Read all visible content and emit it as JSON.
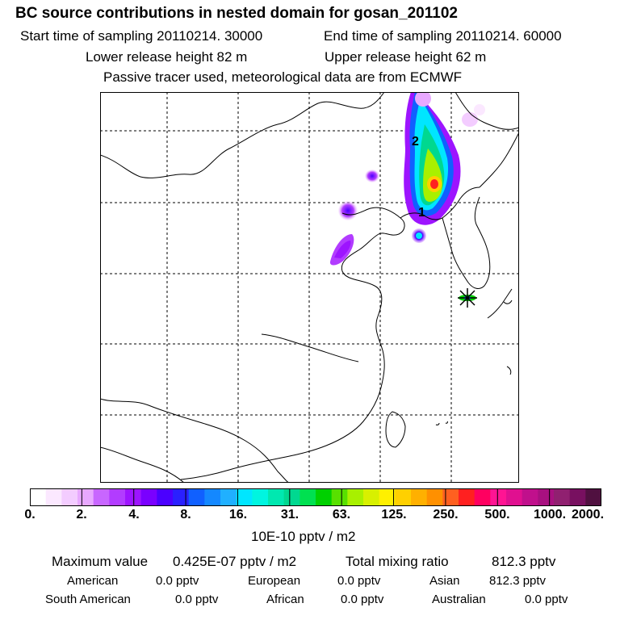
{
  "header": {
    "title": "BC  source contributions in nested domain for gosan_201102",
    "start_time": "Start time of sampling 20110214. 30000",
    "end_time": "End time of sampling 20110214. 60000",
    "lower_release": "Lower release height   82 m",
    "upper_release": "Upper release height   62 m",
    "tracer_note": "Passive tracer used, meteorological data are from ECMWF"
  },
  "map": {
    "markers": [
      {
        "label": "2"
      },
      {
        "label": "1"
      }
    ],
    "receptor_symbol": "star-marker-icon"
  },
  "colorbar": {
    "colors": [
      "#ffffff",
      "#fbe8ff",
      "#f3ccff",
      "#e8a8ff",
      "#c866ff",
      "#b23cff",
      "#9d14ff",
      "#7a00ff",
      "#4b00ff",
      "#2a20ff",
      "#1060ff",
      "#1488ff",
      "#20b0ff",
      "#00e6ff",
      "#00f5e0",
      "#00e8b0",
      "#00d890",
      "#00e050",
      "#00d000",
      "#58e000",
      "#a8f000",
      "#d8f000",
      "#fff000",
      "#ffd000",
      "#ffb000",
      "#ff9000",
      "#ff6020",
      "#ff2020",
      "#ff0060",
      "#ff1493",
      "#e01090",
      "#c0108c",
      "#a81080",
      "#902070",
      "#781060",
      "#501040"
    ],
    "tick_labels": [
      "0.",
      "2.",
      "4.",
      "8.",
      "16.",
      "31.",
      "63.",
      "125.",
      "250.",
      "500.",
      "1000.",
      "2000."
    ],
    "units": "10E-10 pptv / m2"
  },
  "summary": {
    "max_label": "Maximum value",
    "max_value": "0.425E-07 pptv / m2",
    "total_label": "Total mixing ratio",
    "total_value": "812.3 pptv",
    "regions": [
      {
        "name": "American",
        "value": "0.0 pptv"
      },
      {
        "name": "European",
        "value": "0.0 pptv"
      },
      {
        "name": "Asian",
        "value": "812.3 pptv"
      },
      {
        "name": "South American",
        "value": "0.0 pptv"
      },
      {
        "name": "African",
        "value": "0.0 pptv"
      },
      {
        "name": "Australian",
        "value": "0.0 pptv"
      }
    ]
  }
}
